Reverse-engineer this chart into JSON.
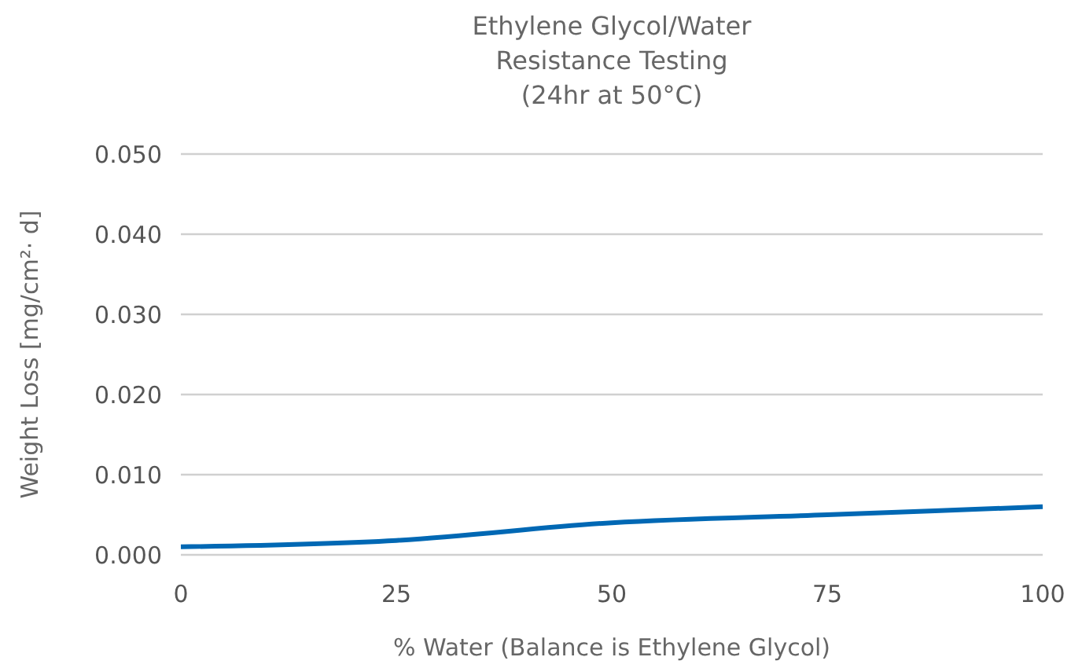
{
  "chart_data": {
    "type": "line",
    "title": "Ethylene Glycol/Water\nResistance Testing\n(24hr at 50°C)",
    "xlabel": "% Water (Balance is Ethylene Glycol)",
    "ylabel": "Weight Loss [mg/cm²· d]",
    "x": [
      0,
      25,
      50,
      75,
      100
    ],
    "series": [
      {
        "color": "#0068b4",
        "values": [
          0.001,
          0.0018,
          0.004,
          0.005,
          0.006
        ]
      }
    ],
    "xlim": [
      0,
      100
    ],
    "xticks": [
      0,
      25,
      50,
      75,
      100
    ],
    "ylim": [
      0,
      0.05
    ],
    "yticks": [
      {
        "value": 0,
        "label": "0.000"
      },
      {
        "value": 0.01,
        "label": "0.010"
      },
      {
        "value": 0.02,
        "label": "0.020"
      },
      {
        "value": 0.03,
        "label": "0.030"
      },
      {
        "value": 0.04,
        "label": "0.040"
      },
      {
        "value": 0.05,
        "label": "0.050"
      }
    ],
    "grid": "y",
    "marker": "none",
    "line_style": "solid"
  }
}
